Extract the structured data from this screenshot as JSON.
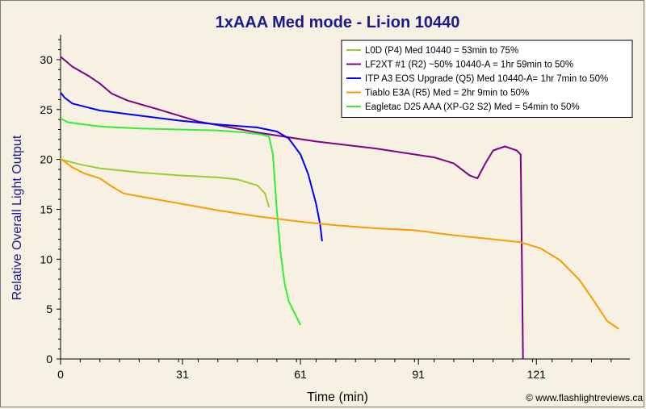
{
  "chart_data": {
    "type": "line",
    "title": "1xAAA Med mode - Li-ion 10440",
    "xlabel": "Time (min)",
    "ylabel": "Relative Overall Light Output",
    "credit": "© www.flashlightreviews.ca",
    "xlim": [
      0,
      142
    ],
    "ylim": [
      0,
      32.5
    ],
    "xticks": [
      0,
      31,
      61,
      91,
      121
    ],
    "yticks": [
      0,
      5,
      10,
      15,
      20,
      25,
      30
    ],
    "grid": false,
    "legend_position": "top-right",
    "series": [
      {
        "name": "L0D (P4) Med 10440 = 53min to 75%",
        "color": "#9acd32",
        "points": [
          [
            0,
            20.0
          ],
          [
            5,
            19.5
          ],
          [
            10,
            19.1
          ],
          [
            20,
            18.7
          ],
          [
            30,
            18.4
          ],
          [
            40,
            18.2
          ],
          [
            45,
            18.0
          ],
          [
            50,
            17.4
          ],
          [
            52,
            16.6
          ],
          [
            53,
            15.2
          ]
        ]
      },
      {
        "name": "LF2XT #1 (R2) ~50% 10440-A = 1hr 59min to 50%",
        "color": "#800080",
        "points": [
          [
            0,
            30.3
          ],
          [
            3,
            29.3
          ],
          [
            7,
            28.4
          ],
          [
            10,
            27.6
          ],
          [
            13,
            26.6
          ],
          [
            17,
            25.9
          ],
          [
            25,
            25.0
          ],
          [
            35,
            23.8
          ],
          [
            50,
            22.7
          ],
          [
            65,
            21.8
          ],
          [
            80,
            21.1
          ],
          [
            95,
            20.2
          ],
          [
            100,
            19.6
          ],
          [
            104,
            18.4
          ],
          [
            106,
            18.1
          ],
          [
            108,
            19.6
          ],
          [
            110,
            20.9
          ],
          [
            113,
            21.3
          ],
          [
            116,
            20.9
          ],
          [
            117,
            20.5
          ],
          [
            117.3,
            10
          ],
          [
            117.6,
            0
          ]
        ]
      },
      {
        "name": "ITP A3 EOS Upgrade (Q5) Med 10440-A= 1hr 7min to 50%",
        "color": "#0000ff",
        "points": [
          [
            0,
            26.7
          ],
          [
            1,
            26.2
          ],
          [
            3,
            25.6
          ],
          [
            10,
            24.9
          ],
          [
            20,
            24.4
          ],
          [
            30,
            23.9
          ],
          [
            40,
            23.5
          ],
          [
            50,
            23.2
          ],
          [
            55,
            22.8
          ],
          [
            58,
            22.1
          ],
          [
            61,
            20.5
          ],
          [
            63,
            18.5
          ],
          [
            65,
            15.5
          ],
          [
            66,
            13.5
          ],
          [
            66.5,
            11.8
          ]
        ]
      },
      {
        "name": "Tiablo E3A (R5) Med = 2hr 9min to 50%",
        "color": "#ff9900",
        "points": [
          [
            0,
            20.1
          ],
          [
            3,
            19.2
          ],
          [
            6,
            18.6
          ],
          [
            10,
            18.1
          ],
          [
            13,
            17.3
          ],
          [
            16,
            16.6
          ],
          [
            20,
            16.3
          ],
          [
            30,
            15.6
          ],
          [
            40,
            14.9
          ],
          [
            50,
            14.3
          ],
          [
            60,
            13.8
          ],
          [
            70,
            13.4
          ],
          [
            80,
            13.1
          ],
          [
            90,
            12.9
          ],
          [
            100,
            12.4
          ],
          [
            110,
            12.0
          ],
          [
            117,
            11.7
          ],
          [
            122,
            11.1
          ],
          [
            127,
            9.9
          ],
          [
            132,
            7.9
          ],
          [
            136,
            5.6
          ],
          [
            139,
            3.8
          ],
          [
            142,
            3.0
          ]
        ]
      },
      {
        "name": "Eagletac D25 AAA (XP-G2 S2) Med = 54min to 50%",
        "color": "#33ee33",
        "points": [
          [
            0,
            24.1
          ],
          [
            2,
            23.7
          ],
          [
            10,
            23.3
          ],
          [
            20,
            23.1
          ],
          [
            30,
            23.0
          ],
          [
            40,
            22.9
          ],
          [
            47,
            22.7
          ],
          [
            51,
            22.5
          ],
          [
            53,
            22.3
          ],
          [
            54,
            20.5
          ],
          [
            55,
            14.8
          ],
          [
            56,
            10.5
          ],
          [
            57,
            7.5
          ],
          [
            58,
            5.8
          ],
          [
            60,
            4.2
          ],
          [
            61,
            3.4
          ]
        ]
      }
    ]
  }
}
